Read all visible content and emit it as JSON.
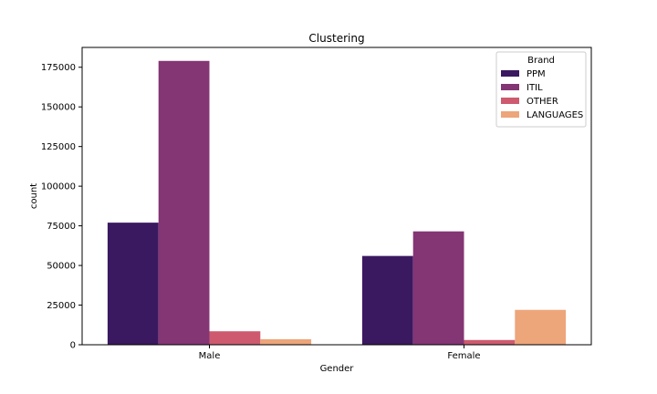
{
  "chart_data": {
    "type": "bar",
    "title": "Clustering",
    "xlabel": "Gender",
    "ylabel": "count",
    "categories": [
      "Male",
      "Female"
    ],
    "series": [
      {
        "name": "PPM",
        "color": "#3b1960",
        "values": [
          77000,
          56000
        ]
      },
      {
        "name": "ITIL",
        "color": "#843574",
        "values": [
          179000,
          71500
        ]
      },
      {
        "name": "OTHER",
        "color": "#cd5a6f",
        "values": [
          8500,
          3000
        ]
      },
      {
        "name": "LANGUAGES",
        "color": "#eda57a",
        "values": [
          3500,
          22000
        ]
      }
    ],
    "ylim": [
      0,
      187500
    ],
    "yticks": [
      0,
      25000,
      50000,
      75000,
      100000,
      125000,
      150000,
      175000
    ],
    "ytick_labels": [
      "0",
      "25000",
      "50000",
      "75000",
      "100000",
      "125000",
      "150000",
      "175000"
    ],
    "legend": {
      "title": "Brand",
      "placement": "top-right"
    },
    "grid": false
  }
}
